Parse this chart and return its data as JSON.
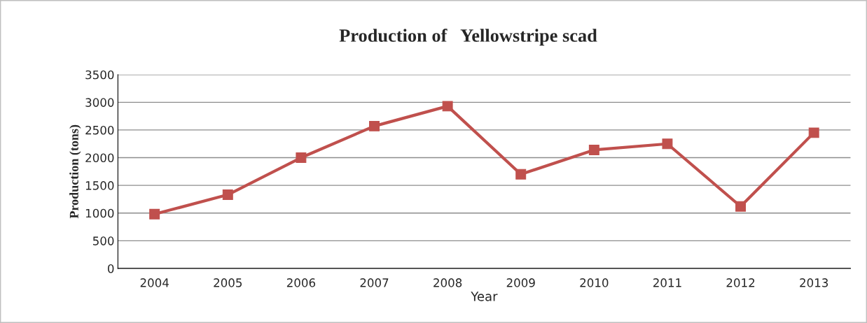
{
  "chart_data": {
    "type": "line",
    "title": "Production of   Yellowstripe scad",
    "xlabel": "Year",
    "ylabel": "Production (tons)",
    "categories": [
      "2004",
      "2005",
      "2006",
      "2007",
      "2008",
      "2009",
      "2010",
      "2011",
      "2012",
      "2013"
    ],
    "series": [
      {
        "color": "#c0504d",
        "values": [
          980,
          1330,
          2000,
          2570,
          2930,
          1700,
          2140,
          2250,
          1120,
          2450
        ]
      }
    ],
    "ylim": [
      0,
      3500
    ],
    "yticks": [
      0,
      500,
      1000,
      1500,
      2000,
      2500,
      3000,
      3500
    ],
    "grid": "y",
    "marker": "square",
    "line_style": "solid",
    "legend": false
  }
}
